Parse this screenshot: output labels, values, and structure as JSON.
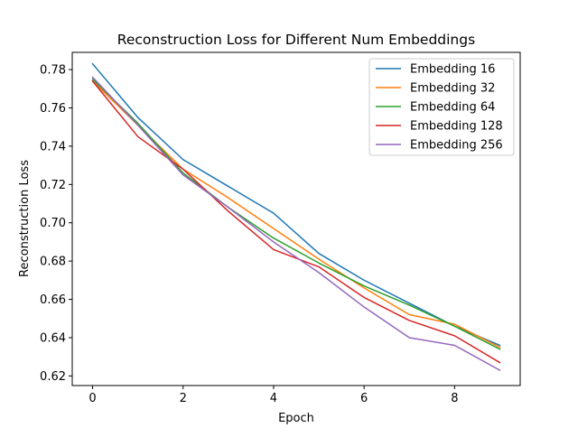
{
  "chart_data": {
    "type": "line",
    "title": "Reconstruction Loss for Different Num Embeddings",
    "xlabel": "Epoch",
    "ylabel": "Reconstruction Loss",
    "x": [
      0,
      1,
      2,
      3,
      4,
      5,
      6,
      7,
      8,
      9
    ],
    "xlim": [
      -0.45,
      9.45
    ],
    "ylim": [
      0.615,
      0.789
    ],
    "xticks": [
      0,
      2,
      4,
      6,
      8
    ],
    "yticks": [
      0.62,
      0.64,
      0.66,
      0.68,
      0.7,
      0.72,
      0.74,
      0.76,
      0.78
    ],
    "xtick_labels": [
      "0",
      "2",
      "4",
      "6",
      "8"
    ],
    "ytick_labels": [
      "0.62",
      "0.64",
      "0.66",
      "0.68",
      "0.70",
      "0.72",
      "0.74",
      "0.76",
      "0.78"
    ],
    "grid": false,
    "legend_position": "top-right",
    "series": [
      {
        "name": "Embedding 16",
        "color": "#1f77b4",
        "values": [
          0.783,
          0.755,
          0.733,
          0.719,
          0.705,
          0.684,
          0.67,
          0.658,
          0.646,
          0.636
        ]
      },
      {
        "name": "Embedding 32",
        "color": "#ff7f0e",
        "values": [
          0.774,
          0.751,
          0.728,
          0.713,
          0.697,
          0.681,
          0.666,
          0.652,
          0.647,
          0.635
        ]
      },
      {
        "name": "Embedding 64",
        "color": "#2ca02c",
        "values": [
          0.775,
          0.752,
          0.726,
          0.708,
          0.692,
          0.679,
          0.667,
          0.657,
          0.646,
          0.634
        ]
      },
      {
        "name": "Embedding 128",
        "color": "#d62728",
        "values": [
          0.774,
          0.745,
          0.728,
          0.706,
          0.686,
          0.677,
          0.661,
          0.649,
          0.641,
          0.627
        ]
      },
      {
        "name": "Embedding 256",
        "color": "#9467bd",
        "values": [
          0.776,
          0.751,
          0.725,
          0.708,
          0.69,
          0.674,
          0.656,
          0.64,
          0.636,
          0.623
        ]
      }
    ]
  }
}
